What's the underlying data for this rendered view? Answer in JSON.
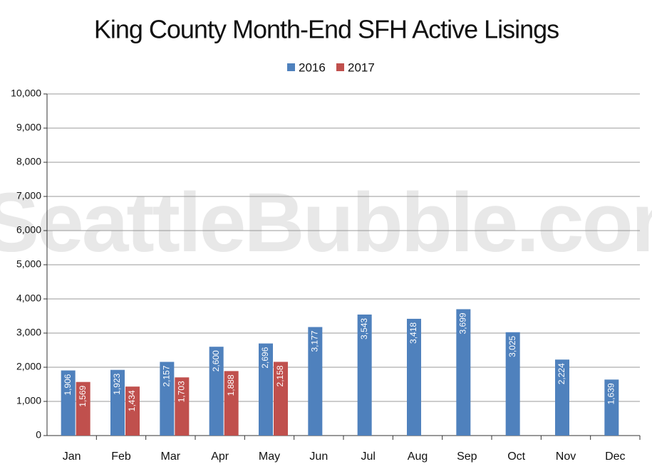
{
  "chart_data": {
    "type": "bar",
    "title": "King County Month-End SFH Active Lisings",
    "watermark": "SeattleBubble.com",
    "categories": [
      "Jan",
      "Feb",
      "Mar",
      "Apr",
      "May",
      "Jun",
      "Jul",
      "Aug",
      "Sep",
      "Oct",
      "Nov",
      "Dec"
    ],
    "series": [
      {
        "name": "2016",
        "color": "#4f81bd",
        "values": [
          1906,
          1923,
          2157,
          2600,
          2696,
          3177,
          3543,
          3418,
          3699,
          3025,
          2224,
          1639
        ],
        "value_labels": [
          "1,906",
          "1,923",
          "2,157",
          "2,600",
          "2,696",
          "3,177",
          "3,543",
          "3,418",
          "3,699",
          "3,025",
          "2,224",
          "1,639"
        ]
      },
      {
        "name": "2017",
        "color": "#c0504d",
        "values": [
          1569,
          1434,
          1703,
          1888,
          2158,
          null,
          null,
          null,
          null,
          null,
          null,
          null
        ],
        "value_labels": [
          "1,569",
          "1,434",
          "1,703",
          "1,888",
          "2,158",
          null,
          null,
          null,
          null,
          null,
          null,
          null
        ]
      }
    ],
    "ylim": [
      0,
      10000
    ],
    "yticks": [
      0,
      {
        "value": 1000,
        "label": "1,000"
      },
      {
        "value": 2000,
        "label": "2,000"
      },
      {
        "value": 3000,
        "label": "3,000"
      },
      {
        "value": 4000,
        "label": "4,000"
      },
      {
        "value": 5000,
        "label": "5,000"
      },
      {
        "value": 6000,
        "label": "6,000"
      },
      {
        "value": 7000,
        "label": "7,000"
      },
      {
        "value": 8000,
        "label": "8,000"
      },
      {
        "value": 9000,
        "label": "9,000"
      },
      {
        "value": 10000,
        "label": "10,000"
      }
    ],
    "grid": true,
    "legend": "top"
  }
}
